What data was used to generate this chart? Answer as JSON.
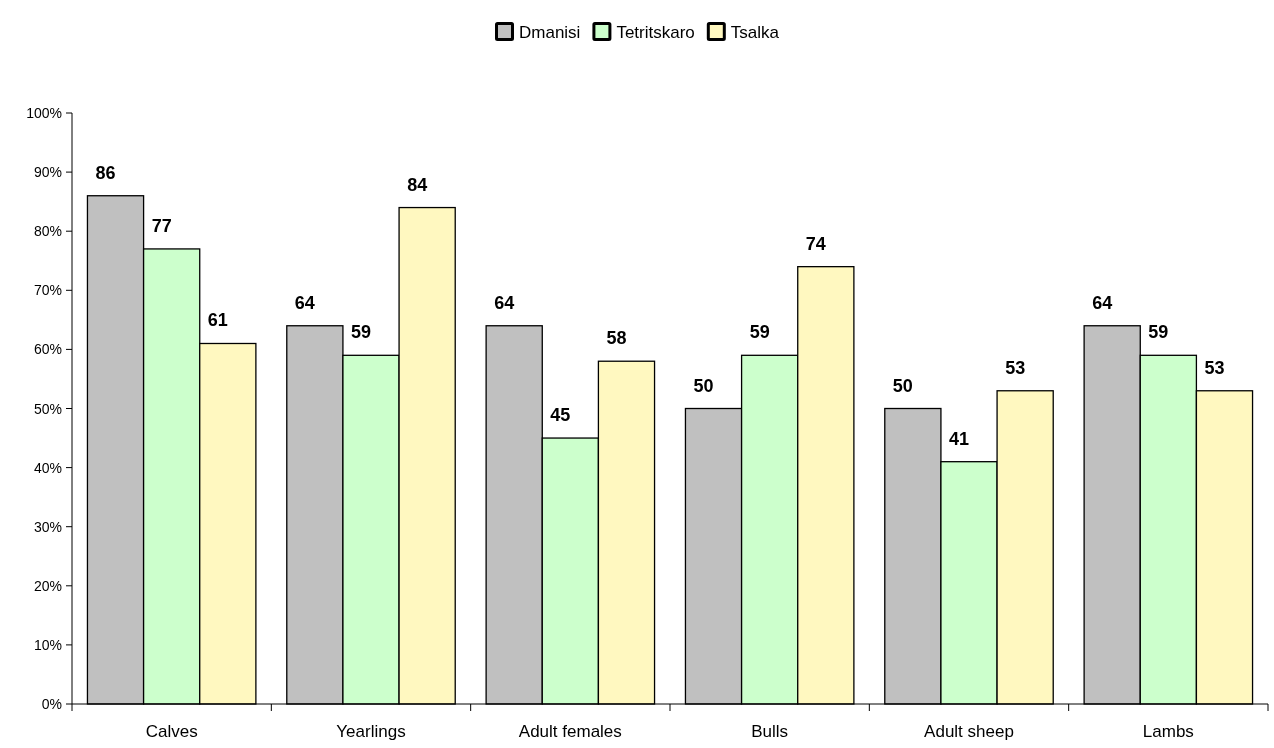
{
  "chart_data": {
    "type": "bar",
    "categories": [
      "Calves",
      "Yearlings",
      "Adult females",
      "Bulls",
      "Adult sheep",
      "Lambs"
    ],
    "series": [
      {
        "name": "Dmanisi",
        "color": "#c0c0c0",
        "values": [
          86,
          64,
          64,
          50,
          50,
          64
        ]
      },
      {
        "name": "Tetritskaro",
        "color": "#ccffcc",
        "values": [
          77,
          59,
          45,
          59,
          41,
          59
        ]
      },
      {
        "name": "Tsalka",
        "color": "#fff8c0",
        "values": [
          61,
          84,
          58,
          74,
          53,
          53
        ]
      }
    ],
    "ylim": [
      0,
      100
    ],
    "yticks": [
      {
        "value": 0,
        "label": "0%"
      },
      {
        "value": 10,
        "label": "10%"
      },
      {
        "value": 20,
        "label": "20%"
      },
      {
        "value": 30,
        "label": "30%"
      },
      {
        "value": 40,
        "label": "40%"
      },
      {
        "value": 50,
        "label": "50%"
      },
      {
        "value": 60,
        "label": "60%"
      },
      {
        "value": 70,
        "label": "70%"
      },
      {
        "value": 80,
        "label": "80%"
      },
      {
        "value": 90,
        "label": "90%"
      },
      {
        "value": 100,
        "label": "100%"
      }
    ],
    "data_labels": true,
    "legend": "top",
    "grid": false
  }
}
